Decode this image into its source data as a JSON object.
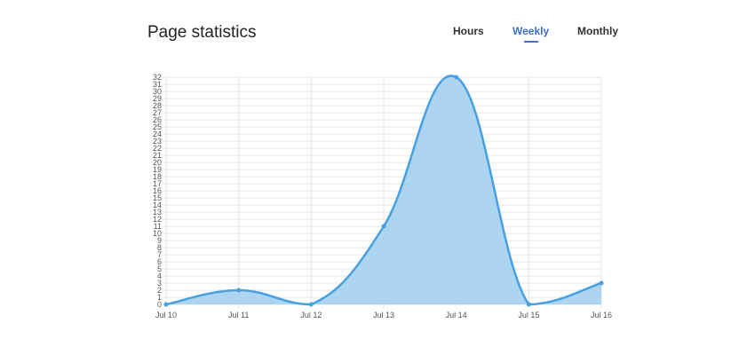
{
  "header": {
    "title": "Page statistics",
    "tabs": [
      {
        "label": "Hours",
        "active": false
      },
      {
        "label": "Weekly",
        "active": true
      },
      {
        "label": "Monthly",
        "active": false
      }
    ]
  },
  "colors": {
    "accent": "#3b6fd4",
    "line": "#47a1e0",
    "fill": "#a9d2ef"
  },
  "chart_data": {
    "type": "area",
    "categories": [
      "Jul 10",
      "Jul 11",
      "Jul 12",
      "Jul 13",
      "Jul 14",
      "Jul 15",
      "Jul 16"
    ],
    "values": [
      0,
      2,
      0,
      11,
      32,
      0,
      3
    ],
    "ylim": [
      0,
      32
    ],
    "ystep": 1,
    "grid": true,
    "xlabel": "",
    "ylabel": ""
  }
}
